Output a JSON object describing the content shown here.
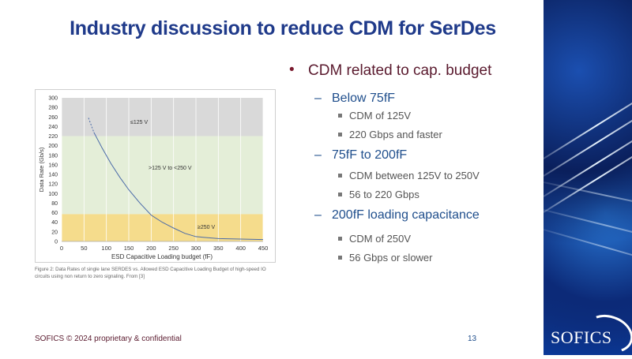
{
  "slide": {
    "title": "Industry discussion to reduce CDM for SerDes",
    "footer": "SOFICS © 2024 proprietary & confidential",
    "page_number": "13",
    "logo_text": "SOFICS"
  },
  "bullets": {
    "main": "CDM related to cap. budget",
    "groups": [
      {
        "label": "Below 75fF",
        "items": [
          "CDM of 125V",
          "220 Gbps and faster"
        ]
      },
      {
        "label": "75fF to 200fF",
        "items": [
          "CDM between 125V to 250V",
          "56 to 220 Gbps"
        ]
      },
      {
        "label": "200fF loading capacitance",
        "items": [
          "CDM of 250V",
          "56 Gbps or slower"
        ]
      }
    ]
  },
  "figure_caption": "Figure 2: Data Rates of single lane SERDES vs. Allowed ESD Capacitive Loading Budget of high-speed IO circuits using non return to zero signaling. From [3]",
  "chart_data": {
    "type": "line",
    "xlabel": "ESD Capacitive Loading budget (fF)",
    "ylabel": "Data Rate (Gb/s)",
    "xlim": [
      0,
      450
    ],
    "ylim": [
      0,
      300
    ],
    "xticks": [
      0,
      50,
      100,
      150,
      200,
      250,
      300,
      350,
      400,
      450
    ],
    "yticks": [
      0,
      20,
      40,
      60,
      80,
      100,
      120,
      140,
      160,
      180,
      200,
      220,
      240,
      260,
      280,
      300
    ],
    "grid": true,
    "bands": [
      {
        "label": "≤125 V",
        "from": 220,
        "to": 300,
        "color": "#d9d9d9"
      },
      {
        "label": ">125 V to <250 V",
        "from": 57,
        "to": 220,
        "color": "#e4eed8"
      },
      {
        "label": "≥250 V",
        "from": 0,
        "to": 57,
        "color": "#f5dc8c"
      }
    ],
    "series": [
      {
        "style": "dashed",
        "x": [
          60,
          66,
          72
        ],
        "y": [
          258,
          243,
          228
        ],
        "color": "#4a6aa8"
      },
      {
        "style": "solid",
        "x": [
          72,
          90,
          110,
          130,
          150,
          175,
          200,
          225,
          250,
          275,
          300,
          350,
          400,
          450
        ],
        "y": [
          228,
          196,
          163,
          134,
          108,
          80,
          55,
          40,
          28,
          17,
          10,
          6,
          5,
          4
        ],
        "color": "#4a6aa8"
      }
    ]
  }
}
